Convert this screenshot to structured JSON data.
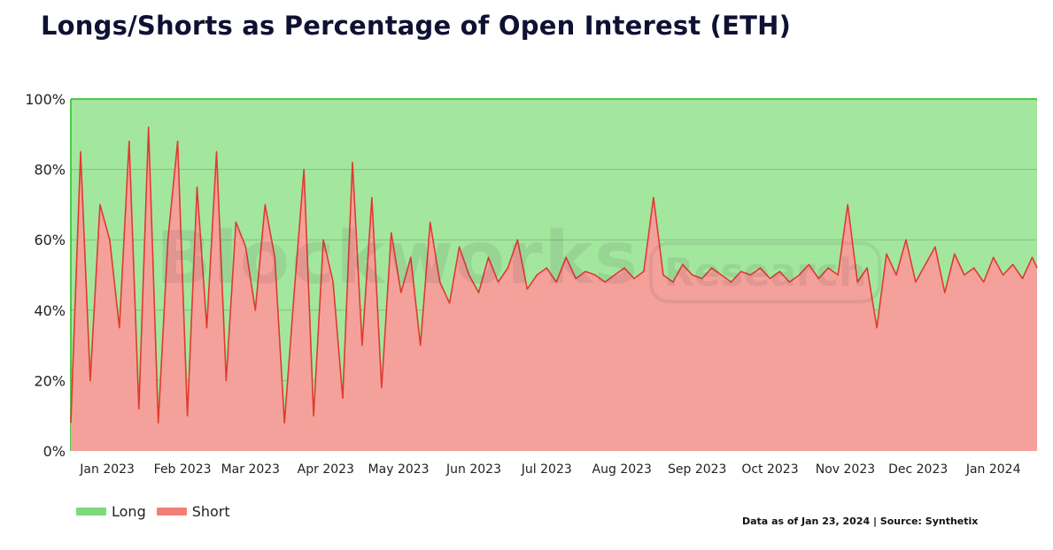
{
  "title": "Longs/Shorts as Percentage of Open Interest (ETH)",
  "footer": "Data as of Jan 23, 2024 | Source: Synthetix",
  "watermark": {
    "main": "Blockworks",
    "box": "Research"
  },
  "colors": {
    "long_fill": "#a3e79f",
    "short_fill": "#f4a19b",
    "line": "#e03a30",
    "long_edge": "#4dc94a"
  },
  "chart_data": {
    "type": "area",
    "title": "Longs/Shorts as Percentage of Open Interest (ETH)",
    "xlabel": "",
    "ylabel": "",
    "ylim": [
      0,
      100
    ],
    "yticks": [
      "0%",
      "20%",
      "40%",
      "60%",
      "80%",
      "100%"
    ],
    "x_tick_labels": [
      "Jan 2023",
      "Feb 2023",
      "Mar 2023",
      "Apr 2023",
      "May 2023",
      "Jun 2023",
      "Jul 2023",
      "Aug 2023",
      "Sep 2023",
      "Oct 2023",
      "Nov 2023",
      "Dec 2023",
      "Jan 2024"
    ],
    "x_range": [
      "2022-12-21",
      "2024-01-23"
    ],
    "grid": true,
    "legend": "bottom-left",
    "series": [
      {
        "name": "Long",
        "stacked": "top",
        "color": "#a3e79f"
      },
      {
        "name": "Short",
        "stacked": "bottom",
        "color": "#f4a19b"
      }
    ],
    "short_pct": {
      "x": [
        "2022-12-21",
        "2022-12-25",
        "2022-12-29",
        "2023-01-02",
        "2023-01-06",
        "2023-01-10",
        "2023-01-14",
        "2023-01-18",
        "2023-01-22",
        "2023-01-26",
        "2023-01-30",
        "2023-02-03",
        "2023-02-07",
        "2023-02-11",
        "2023-02-15",
        "2023-02-19",
        "2023-02-23",
        "2023-02-27",
        "2023-03-03",
        "2023-03-07",
        "2023-03-11",
        "2023-03-15",
        "2023-03-19",
        "2023-03-23",
        "2023-03-27",
        "2023-03-31",
        "2023-04-04",
        "2023-04-08",
        "2023-04-12",
        "2023-04-16",
        "2023-04-20",
        "2023-04-24",
        "2023-04-28",
        "2023-05-02",
        "2023-05-06",
        "2023-05-10",
        "2023-05-14",
        "2023-05-18",
        "2023-05-22",
        "2023-05-26",
        "2023-05-30",
        "2023-06-03",
        "2023-06-07",
        "2023-06-11",
        "2023-06-15",
        "2023-06-19",
        "2023-06-23",
        "2023-06-27",
        "2023-07-01",
        "2023-07-05",
        "2023-07-09",
        "2023-07-13",
        "2023-07-17",
        "2023-07-21",
        "2023-07-25",
        "2023-07-29",
        "2023-08-02",
        "2023-08-06",
        "2023-08-10",
        "2023-08-14",
        "2023-08-18",
        "2023-08-22",
        "2023-08-26",
        "2023-08-30",
        "2023-09-03",
        "2023-09-07",
        "2023-09-11",
        "2023-09-15",
        "2023-09-19",
        "2023-09-23",
        "2023-09-27",
        "2023-10-01",
        "2023-10-05",
        "2023-10-09",
        "2023-10-13",
        "2023-10-17",
        "2023-10-21",
        "2023-10-25",
        "2023-10-29",
        "2023-11-02",
        "2023-11-06",
        "2023-11-10",
        "2023-11-14",
        "2023-11-18",
        "2023-11-22",
        "2023-11-26",
        "2023-11-30",
        "2023-12-04",
        "2023-12-08",
        "2023-12-12",
        "2023-12-16",
        "2023-12-20",
        "2023-12-24",
        "2023-12-28",
        "2024-01-01",
        "2024-01-05",
        "2024-01-09",
        "2024-01-13",
        "2024-01-17",
        "2024-01-21",
        "2024-01-23"
      ],
      "values": [
        8,
        85,
        20,
        70,
        60,
        35,
        88,
        12,
        92,
        8,
        60,
        88,
        10,
        75,
        35,
        85,
        20,
        65,
        58,
        40,
        70,
        55,
        8,
        45,
        80,
        10,
        60,
        48,
        15,
        82,
        30,
        72,
        18,
        62,
        45,
        55,
        30,
        65,
        48,
        42,
        58,
        50,
        45,
        55,
        48,
        52,
        60,
        46,
        50,
        52,
        48,
        55,
        49,
        51,
        50,
        48,
        50,
        52,
        49,
        51,
        72,
        50,
        48,
        53,
        50,
        49,
        52,
        50,
        48,
        51,
        50,
        52,
        49,
        51,
        48,
        50,
        53,
        49,
        52,
        50,
        70,
        48,
        52,
        35,
        56,
        50,
        60,
        48,
        53,
        58,
        45,
        56,
        50,
        52,
        48,
        55,
        50,
        53,
        49,
        55,
        52
      ]
    }
  }
}
